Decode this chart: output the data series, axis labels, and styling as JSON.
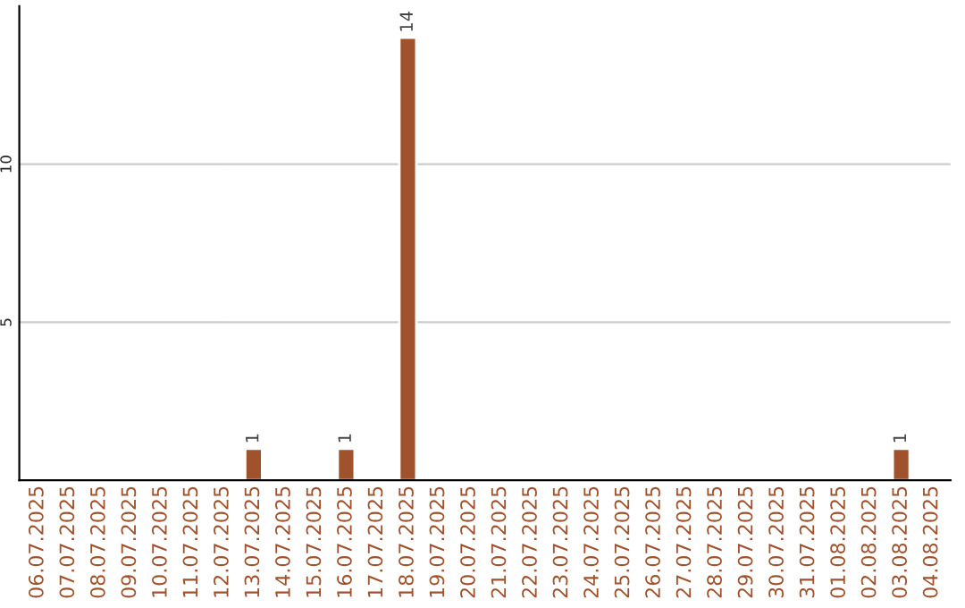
{
  "chart_data": {
    "type": "bar",
    "categories": [
      "06.07.2025",
      "07.07.2025",
      "08.07.2025",
      "09.07.2025",
      "10.07.2025",
      "11.07.2025",
      "12.07.2025",
      "13.07.2025",
      "14.07.2025",
      "15.07.2025",
      "16.07.2025",
      "17.07.2025",
      "18.07.2025",
      "19.07.2025",
      "20.07.2025",
      "21.07.2025",
      "22.07.2025",
      "23.07.2025",
      "24.07.2025",
      "25.07.2025",
      "26.07.2025",
      "27.07.2025",
      "28.07.2025",
      "29.07.2025",
      "30.07.2025",
      "31.07.2025",
      "01.08.2025",
      "02.08.2025",
      "03.08.2025",
      "04.08.2025"
    ],
    "values": [
      null,
      null,
      null,
      null,
      null,
      null,
      null,
      1,
      null,
      null,
      1,
      null,
      14,
      null,
      null,
      null,
      null,
      null,
      null,
      null,
      null,
      null,
      null,
      null,
      null,
      null,
      null,
      null,
      1,
      null
    ],
    "value_labels": [
      null,
      null,
      null,
      null,
      null,
      null,
      null,
      "1",
      null,
      null,
      "1",
      null,
      "14",
      null,
      null,
      null,
      null,
      null,
      null,
      null,
      null,
      null,
      null,
      null,
      null,
      null,
      null,
      null,
      "1",
      null
    ],
    "color": "#a0522d",
    "ylim": [
      0,
      15
    ],
    "yticks": [
      5,
      10
    ],
    "grid": "y"
  }
}
